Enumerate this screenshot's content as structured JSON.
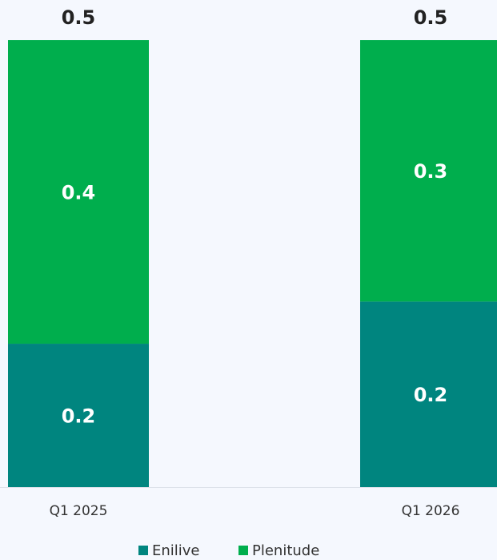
{
  "chart_data": {
    "type": "stacked_bar",
    "categories": [
      "Q1 2025",
      "Q1 2026"
    ],
    "series": [
      {
        "name": "Enilive",
        "color": "#00857f",
        "values": [
          0.17,
          0.22
        ],
        "value_labels": [
          "0.2",
          "0.2"
        ]
      },
      {
        "name": "Plenitude",
        "color": "#00ae4d",
        "values": [
          0.36,
          0.31
        ],
        "value_labels": [
          "0.4",
          "0.3"
        ]
      }
    ],
    "totals": [
      0.53,
      0.53
    ],
    "total_labels": [
      "0.5",
      "0.5"
    ],
    "ylim": [
      0,
      0.55
    ],
    "legend": "bottom"
  }
}
